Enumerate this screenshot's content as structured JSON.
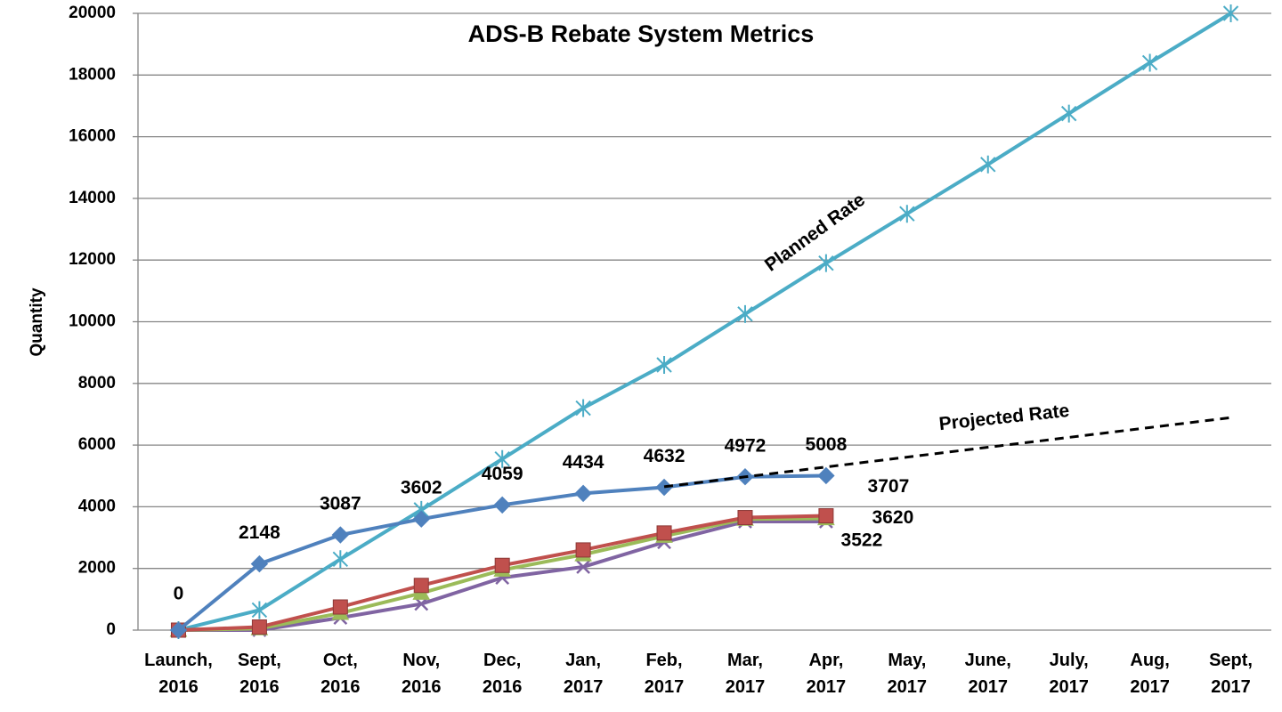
{
  "chart_data": {
    "type": "line",
    "title": "ADS-B Rebate System Metrics",
    "y_label": "Quantity",
    "categories": [
      "Launch, 2016",
      "Sept, 2016",
      "Oct, 2016",
      "Nov, 2016",
      "Dec, 2016",
      "Jan, 2017",
      "Feb, 2017",
      "Mar, 2017",
      "Apr, 2017",
      "May, 2017",
      "June, 2017",
      "July, 2017",
      "Aug, 2017",
      "Sept, 2017"
    ],
    "ylim": [
      0,
      20000
    ],
    "yticks": [
      0,
      2000,
      4000,
      6000,
      8000,
      10000,
      12000,
      14000,
      16000,
      18000,
      20000
    ],
    "grid": true,
    "series": [
      {
        "name": "Planned Rate",
        "color": "#4bacc6",
        "marker": "star",
        "values": [
          0,
          650,
          2300,
          3900,
          5550,
          7200,
          8600,
          10250,
          11900,
          13500,
          15100,
          16750,
          18400,
          20000
        ]
      },
      {
        "color": "#8064a2",
        "marker": "x",
        "label_last": true,
        "values": [
          0,
          0,
          400,
          850,
          1700,
          2050,
          2850,
          3522,
          3522,
          null,
          null,
          null,
          null,
          null
        ]
      },
      {
        "color": "#9bbb59",
        "marker": "triangle",
        "label_last": true,
        "values": [
          0,
          50,
          550,
          1200,
          1950,
          2450,
          3050,
          3600,
          3620,
          null,
          null,
          null,
          null,
          null
        ]
      },
      {
        "color": "#c0504d",
        "marker": "square",
        "label_last": true,
        "values": [
          0,
          100,
          750,
          1450,
          2100,
          2600,
          3150,
          3650,
          3707,
          null,
          null,
          null,
          null,
          null
        ]
      },
      {
        "color": "#4f81bd",
        "marker": "diamond",
        "labels": true,
        "values": [
          0,
          2148,
          3087,
          3602,
          4059,
          4434,
          4632,
          4972,
          5008,
          null,
          null,
          null,
          null,
          null
        ]
      },
      {
        "name": "Projected Rate",
        "color": "#000000",
        "dashed": true,
        "values": [
          null,
          null,
          null,
          null,
          null,
          null,
          4650,
          4970,
          5290,
          5610,
          5930,
          6250,
          6570,
          6890
        ]
      }
    ]
  }
}
